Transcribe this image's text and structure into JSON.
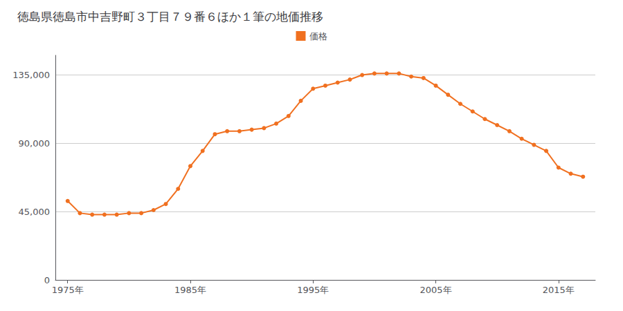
{
  "chart_data": {
    "type": "line",
    "title": "徳島県徳島市中吉野町３丁目７９番６ほか１筆の地価推移",
    "x": [
      1975,
      1976,
      1977,
      1978,
      1979,
      1980,
      1981,
      1982,
      1983,
      1984,
      1985,
      1986,
      1987,
      1988,
      1989,
      1990,
      1991,
      1992,
      1993,
      1994,
      1995,
      1996,
      1997,
      1998,
      1999,
      2000,
      2001,
      2002,
      2003,
      2004,
      2005,
      2006,
      2007,
      2008,
      2009,
      2010,
      2011,
      2012,
      2013,
      2014,
      2015,
      2016,
      2017
    ],
    "series": [
      {
        "name": "価格",
        "color": "#f07020",
        "marker": "circle",
        "values": [
          52000,
          44000,
          43000,
          43000,
          43000,
          44000,
          44000,
          46000,
          50000,
          60000,
          75000,
          85000,
          96000,
          98000,
          98000,
          99000,
          100000,
          103000,
          108000,
          118000,
          126000,
          128000,
          130000,
          132000,
          135000,
          136000,
          136000,
          136000,
          134000,
          133000,
          128000,
          122000,
          116000,
          111000,
          106000,
          102000,
          98000,
          93000,
          89000,
          85000,
          74000,
          70000,
          68000
        ]
      }
    ],
    "xlim": [
      1974,
      2018
    ],
    "xticks": [
      {
        "value": 1975,
        "label": "1975年"
      },
      {
        "value": 1985,
        "label": "1985年"
      },
      {
        "value": 1995,
        "label": "1995年"
      },
      {
        "value": 2005,
        "label": "2005年"
      },
      {
        "value": 2015,
        "label": "2015年"
      }
    ],
    "ylim": [
      0,
      148000
    ],
    "yticks": [
      0,
      {
        "value": 45000,
        "label": "45,000"
      },
      {
        "value": 90000,
        "label": "90,000"
      },
      {
        "value": 135000,
        "label": "135,000"
      }
    ],
    "grid": "y",
    "legend": "top"
  }
}
